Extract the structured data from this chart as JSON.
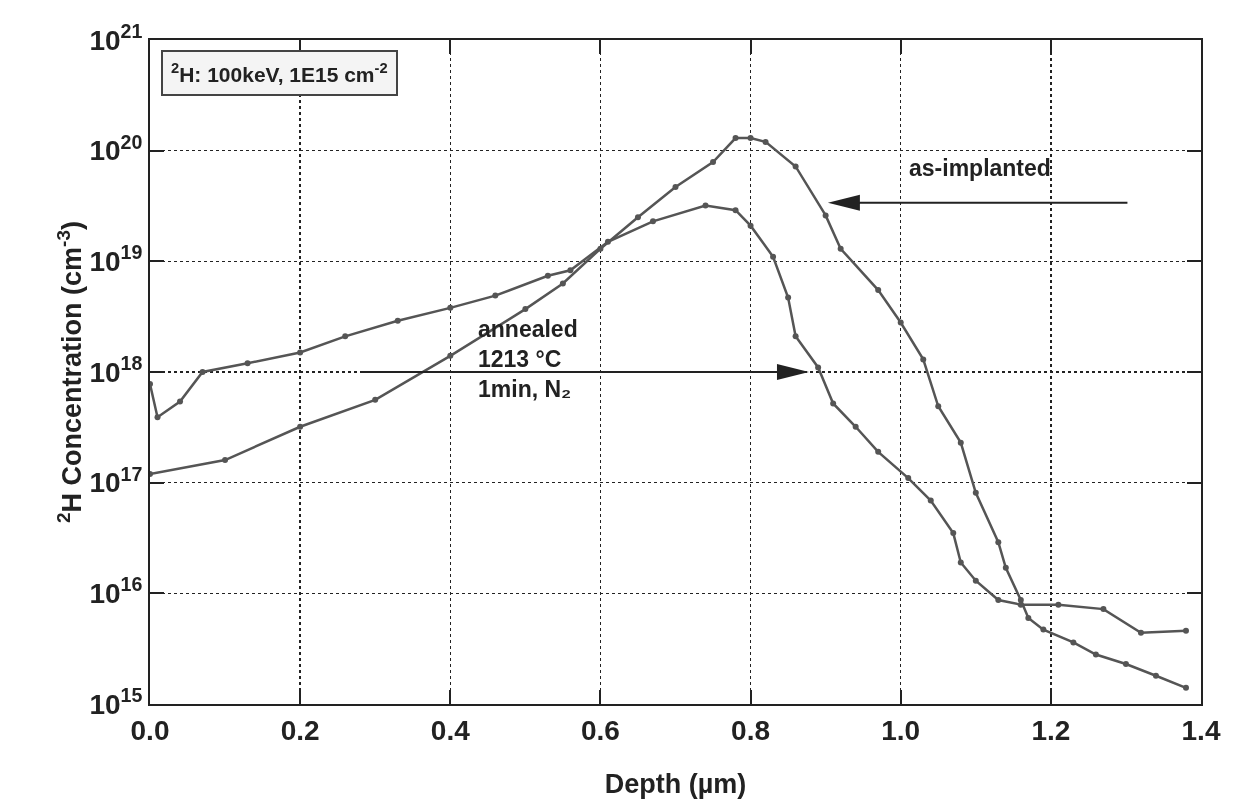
{
  "chart_data": {
    "type": "line",
    "xlabel": "Depth (µm)",
    "ylabel": "$^{2}$H Concentration (cm$^{-3}$)",
    "log": "y",
    "grid": true,
    "marker": "circle",
    "line_style": "solid",
    "xlim": [
      0,
      1.4
    ],
    "ylim": [
      1000000000000000.0,
      1e+21
    ],
    "xticks": [
      {
        "value": 0,
        "label": "0.0"
      },
      0.2,
      0.4,
      0.6,
      0.8,
      {
        "value": 1,
        "label": "1.0"
      },
      1.2,
      1.4
    ],
    "yticks": [
      {
        "value": 1000000000000000.0,
        "label": "10$^{15}$"
      },
      {
        "value": 1e+16,
        "label": "10$^{16}$"
      },
      {
        "value": 1e+17,
        "label": "10$^{17}$"
      },
      {
        "value": 1e+18,
        "label": "10$^{18}$"
      },
      {
        "value": 1e+19,
        "label": "10$^{19}$"
      },
      {
        "value": 1e+20,
        "label": "10$^{20}$"
      },
      {
        "value": 1e+21,
        "label": "10$^{21}$"
      }
    ],
    "series": [
      {
        "color": "#555555",
        "x": [
          0,
          0.1,
          0.2,
          0.3,
          0.4,
          0.5,
          0.55,
          0.6,
          0.65,
          0.7,
          0.75,
          0.78,
          0.8,
          0.82,
          0.86,
          0.9,
          0.92,
          0.97,
          1.0,
          1.03,
          1.05,
          1.08,
          1.1,
          1.13,
          1.14,
          1.16,
          1.17,
          1.19,
          1.23,
          1.26,
          1.3,
          1.34,
          1.38
        ],
        "values": [
          1.2e+17,
          1.6e+17,
          3.2e+17,
          5.6e+17,
          1.4e+18,
          3.7e+18,
          6.3e+18,
          1.3e+19,
          2.5e+19,
          4.7e+19,
          7.9e+19,
          1.3e+20,
          1.3e+20,
          1.2e+20,
          7.2e+19,
          2.6e+19,
          1.3e+19,
          5.5e+18,
          2.8e+18,
          1.3e+18,
          4.9e+17,
          2.3e+17,
          8.1e+16,
          2.9e+16,
          1.7e+16,
          8700000000000000.0,
          6000000000000000.0,
          4700000000000000.0,
          3600000000000000.0,
          2800000000000000.0,
          2300000000000000.0,
          1800000000000000.0,
          1400000000000000.0
        ]
      },
      {
        "color": "#555555",
        "x": [
          0,
          0.01,
          0.04,
          0.07,
          0.13,
          0.2,
          0.26,
          0.33,
          0.4,
          0.46,
          0.53,
          0.56,
          0.61,
          0.67,
          0.74,
          0.78,
          0.8,
          0.83,
          0.85,
          0.86,
          0.89,
          0.91,
          0.94,
          0.97,
          1.01,
          1.04,
          1.07,
          1.08,
          1.1,
          1.13,
          1.16,
          1.21,
          1.27,
          1.32,
          1.38
        ],
        "values": [
          7.8e+17,
          3.9e+17,
          5.4e+17,
          1e+18,
          1.2e+18,
          1.5e+18,
          2.1e+18,
          2.9e+18,
          3.8e+18,
          4.9e+18,
          7.4e+18,
          8.3e+18,
          1.5e+19,
          2.3e+19,
          3.2e+19,
          2.9e+19,
          2.1e+19,
          1.1e+19,
          4.7e+18,
          2.1e+18,
          1.1e+18,
          5.2e+17,
          3.2e+17,
          1.9e+17,
          1.1e+17,
          6.9e+16,
          3.5e+16,
          1.9e+16,
          1.3e+16,
          8700000000000000.0,
          7900000000000000.0,
          7900000000000000.0,
          7200000000000000.0,
          4400000000000000.0,
          4600000000000000.0
        ]
      }
    ],
    "annotations": [
      "$^{2}$H: 100keV, 1E15 cm$^{-2}$",
      "as-implanted",
      "annealed\n1213 °C\n1min, N₂"
    ]
  }
}
